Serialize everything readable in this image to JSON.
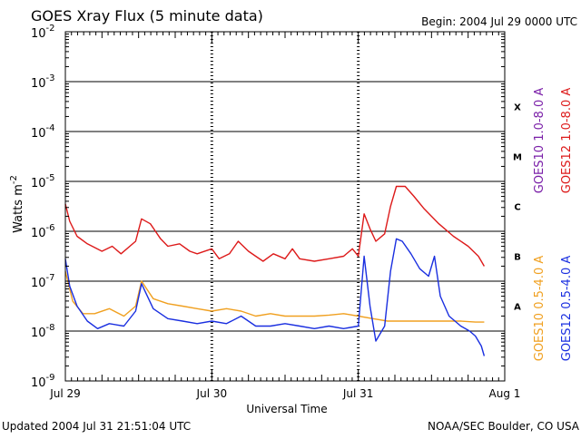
{
  "chart_data": {
    "type": "line",
    "title": "GOES Xray Flux (5 minute data)",
    "begin_label": "Begin:  2004 Jul 29 0000 UTC",
    "xlabel": "Universal Time",
    "ylabel": "Watts m",
    "ylabel_sup": "-2",
    "footer_left": "Updated 2004 Jul 31 21:51:04 UTC",
    "footer_right": "NOAA/SEC Boulder, CO USA",
    "y_scale": "log",
    "ylim": [
      1e-09,
      0.01
    ],
    "xlim_days": [
      0,
      3
    ],
    "x_ticks": [
      {
        "day": 0,
        "label": "Jul 29"
      },
      {
        "day": 1,
        "label": "Jul 30"
      },
      {
        "day": 2,
        "label": "Jul 31"
      },
      {
        "day": 3,
        "label": "Aug 1"
      }
    ],
    "y_ticks": [
      {
        "exp": -2,
        "base": "10",
        "sup": "-2"
      },
      {
        "exp": -3,
        "base": "10",
        "sup": "-3"
      },
      {
        "exp": -4,
        "base": "10",
        "sup": "-4"
      },
      {
        "exp": -5,
        "base": "10",
        "sup": "-5"
      },
      {
        "exp": -6,
        "base": "10",
        "sup": "-6"
      },
      {
        "exp": -7,
        "base": "10",
        "sup": "-7"
      },
      {
        "exp": -8,
        "base": "10",
        "sup": "-8"
      },
      {
        "exp": -9,
        "base": "10",
        "sup": "-9"
      }
    ],
    "class_labels": [
      {
        "label": "X",
        "exp": -3.5
      },
      {
        "label": "M",
        "exp": -4.5
      },
      {
        "label": "C",
        "exp": -5.5
      },
      {
        "label": "B",
        "exp": -6.5
      },
      {
        "label": "A",
        "exp": -7.5
      }
    ],
    "grid": true,
    "legend": [
      {
        "name": "GOES10 1.0-8.0 A",
        "color": "#7a1fa8"
      },
      {
        "name": "GOES12 1.0-8.0 A",
        "color": "#dd1a1a"
      },
      {
        "name": "GOES10 0.5-4.0 A",
        "color": "#f0a020"
      },
      {
        "name": "GOES12 0.5-4.0 A",
        "color": "#1a2fe0"
      }
    ],
    "series": [
      {
        "name": "GOES12 1.0-8.0 A",
        "color": "#dd1a1a",
        "points": [
          [
            0.0,
            -5.45
          ],
          [
            0.03,
            -5.8
          ],
          [
            0.08,
            -6.1
          ],
          [
            0.15,
            -6.25
          ],
          [
            0.25,
            -6.4
          ],
          [
            0.32,
            -6.3
          ],
          [
            0.38,
            -6.45
          ],
          [
            0.48,
            -6.2
          ],
          [
            0.52,
            -5.75
          ],
          [
            0.58,
            -5.85
          ],
          [
            0.65,
            -6.15
          ],
          [
            0.7,
            -6.3
          ],
          [
            0.78,
            -6.25
          ],
          [
            0.85,
            -6.4
          ],
          [
            0.9,
            -6.45
          ],
          [
            1.0,
            -6.35
          ],
          [
            1.05,
            -6.55
          ],
          [
            1.12,
            -6.45
          ],
          [
            1.18,
            -6.2
          ],
          [
            1.25,
            -6.4
          ],
          [
            1.3,
            -6.5
          ],
          [
            1.35,
            -6.6
          ],
          [
            1.42,
            -6.45
          ],
          [
            1.5,
            -6.55
          ],
          [
            1.55,
            -6.35
          ],
          [
            1.6,
            -6.55
          ],
          [
            1.7,
            -6.6
          ],
          [
            1.8,
            -6.55
          ],
          [
            1.9,
            -6.5
          ],
          [
            1.96,
            -6.35
          ],
          [
            2.0,
            -6.5
          ],
          [
            2.04,
            -5.65
          ],
          [
            2.08,
            -5.95
          ],
          [
            2.12,
            -6.2
          ],
          [
            2.18,
            -6.05
          ],
          [
            2.22,
            -5.5
          ],
          [
            2.26,
            -5.1
          ],
          [
            2.32,
            -5.1
          ],
          [
            2.38,
            -5.3
          ],
          [
            2.45,
            -5.55
          ],
          [
            2.55,
            -5.85
          ],
          [
            2.65,
            -6.1
          ],
          [
            2.75,
            -6.3
          ],
          [
            2.82,
            -6.5
          ],
          [
            2.86,
            -6.7
          ]
        ]
      },
      {
        "name": "GOES10 0.5-4.0 A",
        "color": "#f0a020",
        "points": [
          [
            0.0,
            -6.8
          ],
          [
            0.05,
            -7.4
          ],
          [
            0.12,
            -7.65
          ],
          [
            0.2,
            -7.65
          ],
          [
            0.3,
            -7.55
          ],
          [
            0.4,
            -7.7
          ],
          [
            0.48,
            -7.5
          ],
          [
            0.52,
            -7.0
          ],
          [
            0.6,
            -7.35
          ],
          [
            0.7,
            -7.45
          ],
          [
            0.8,
            -7.5
          ],
          [
            0.9,
            -7.55
          ],
          [
            1.0,
            -7.6
          ],
          [
            1.1,
            -7.55
          ],
          [
            1.2,
            -7.6
          ],
          [
            1.3,
            -7.7
          ],
          [
            1.4,
            -7.65
          ],
          [
            1.5,
            -7.7
          ],
          [
            1.6,
            -7.7
          ],
          [
            1.7,
            -7.7
          ],
          [
            1.8,
            -7.68
          ],
          [
            1.9,
            -7.65
          ],
          [
            2.0,
            -7.7
          ],
          [
            2.1,
            -7.75
          ],
          [
            2.2,
            -7.8
          ],
          [
            2.3,
            -7.8
          ],
          [
            2.4,
            -7.8
          ],
          [
            2.5,
            -7.8
          ],
          [
            2.6,
            -7.8
          ],
          [
            2.7,
            -7.8
          ],
          [
            2.8,
            -7.82
          ],
          [
            2.86,
            -7.82
          ]
        ]
      },
      {
        "name": "GOES12 0.5-4.0 A",
        "color": "#1a2fe0",
        "points": [
          [
            0.0,
            -6.55
          ],
          [
            0.03,
            -7.1
          ],
          [
            0.08,
            -7.5
          ],
          [
            0.15,
            -7.8
          ],
          [
            0.22,
            -7.95
          ],
          [
            0.3,
            -7.85
          ],
          [
            0.4,
            -7.9
          ],
          [
            0.48,
            -7.6
          ],
          [
            0.52,
            -7.05
          ],
          [
            0.6,
            -7.55
          ],
          [
            0.7,
            -7.75
          ],
          [
            0.8,
            -7.8
          ],
          [
            0.9,
            -7.85
          ],
          [
            1.0,
            -7.8
          ],
          [
            1.1,
            -7.85
          ],
          [
            1.2,
            -7.7
          ],
          [
            1.3,
            -7.9
          ],
          [
            1.4,
            -7.9
          ],
          [
            1.5,
            -7.85
          ],
          [
            1.6,
            -7.9
          ],
          [
            1.7,
            -7.95
          ],
          [
            1.8,
            -7.9
          ],
          [
            1.9,
            -7.95
          ],
          [
            2.0,
            -7.9
          ],
          [
            2.04,
            -6.5
          ],
          [
            2.08,
            -7.5
          ],
          [
            2.12,
            -8.2
          ],
          [
            2.18,
            -7.9
          ],
          [
            2.22,
            -6.8
          ],
          [
            2.26,
            -6.15
          ],
          [
            2.3,
            -6.2
          ],
          [
            2.36,
            -6.45
          ],
          [
            2.42,
            -6.75
          ],
          [
            2.48,
            -6.9
          ],
          [
            2.52,
            -6.5
          ],
          [
            2.56,
            -7.3
          ],
          [
            2.62,
            -7.7
          ],
          [
            2.7,
            -7.9
          ],
          [
            2.76,
            -8.0
          ],
          [
            2.8,
            -8.1
          ],
          [
            2.84,
            -8.3
          ],
          [
            2.86,
            -8.5
          ]
        ]
      }
    ]
  }
}
